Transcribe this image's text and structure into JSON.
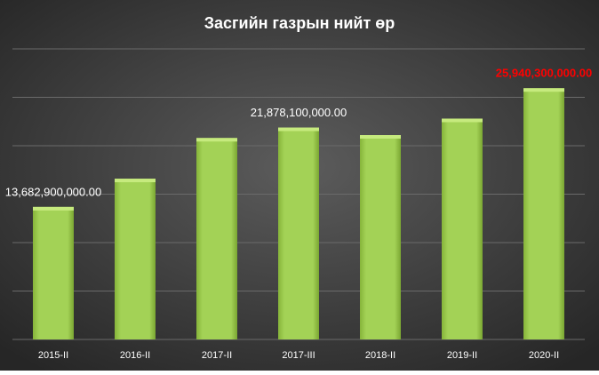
{
  "chart_data": {
    "type": "bar",
    "title": "Засгийн газрын нийт өр",
    "categories": [
      "2015-II",
      "2016-II",
      "2017-II",
      "2017-III",
      "2018-II",
      "2019-II",
      "2020-II"
    ],
    "values": [
      13682900000,
      16600000000,
      20800000000,
      21878100000,
      21100000000,
      22800000000,
      25940300000
    ],
    "value_labels": [
      "13,682,900,000.00",
      null,
      null,
      "21,878,100,000.00",
      null,
      null,
      "25,940,300,000.00"
    ],
    "value_label_colors": [
      "#ffffff",
      null,
      null,
      "#ffffff",
      null,
      null,
      "#ff0000"
    ],
    "color": "#9bcc4a",
    "ylim": [
      0,
      30000000000
    ],
    "yticks": [
      0,
      5000000000,
      10000000000,
      15000000000,
      20000000000,
      25000000000,
      30000000000
    ],
    "grid": true
  }
}
